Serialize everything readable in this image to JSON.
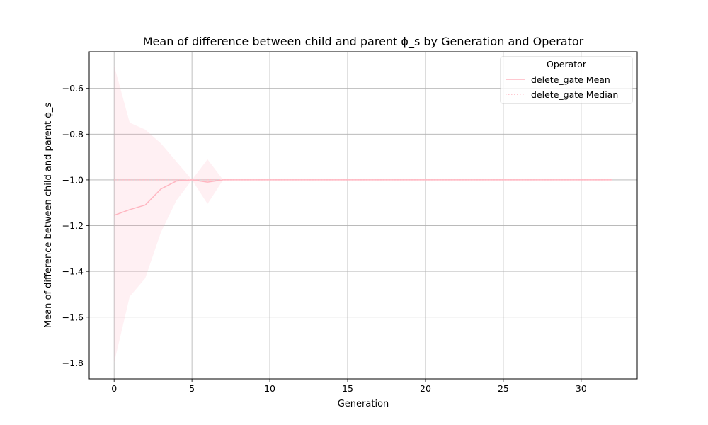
{
  "chart_data": {
    "type": "line",
    "title": "Mean of difference between child and parent ϕ_s by Generation and Operator",
    "xlabel": "Generation",
    "ylabel": "Mean of difference between child and parent ϕ_s",
    "xlim": [
      -1.6,
      33.6
    ],
    "ylim": [
      -1.87,
      -0.44
    ],
    "xticks": [
      0,
      5,
      10,
      15,
      20,
      25,
      30
    ],
    "yticks": [
      -1.8,
      -1.6,
      -1.4,
      -1.2,
      -1.0,
      -0.8,
      -0.6
    ],
    "ytick_labels": [
      "−1.8",
      "−1.6",
      "−1.4",
      "−1.2",
      "−1.0",
      "−0.8",
      "−0.6"
    ],
    "grid": true,
    "legend": {
      "title": "Operator",
      "placement": "top-right",
      "entries": [
        "delete_gate Mean",
        "delete_gate Median"
      ]
    },
    "x": [
      0,
      1,
      2,
      3,
      4,
      5,
      6,
      7,
      8,
      9,
      10,
      11,
      12,
      13,
      14,
      15,
      16,
      17,
      18,
      19,
      20,
      21,
      22,
      23,
      24,
      25,
      26,
      27,
      28,
      29,
      30,
      31,
      32
    ],
    "series": [
      {
        "name": "delete_gate Mean",
        "style": "solid",
        "color": "#ffb6c1",
        "values": [
          -1.155,
          -1.13,
          -1.11,
          -1.04,
          -1.005,
          -1.0,
          -1.01,
          -1.0,
          -1.0,
          -1.0,
          -1.0,
          -1.0,
          -1.0,
          -1.0,
          -1.0,
          -1.0,
          -1.0,
          -1.0,
          -1.0,
          -1.0,
          -1.0,
          -1.0,
          -1.0,
          -1.0,
          -1.0,
          -1.0,
          -1.0,
          -1.0,
          -1.0,
          -1.0,
          -1.0,
          -1.0,
          -1.0
        ]
      },
      {
        "name": "delete_gate Median",
        "style": "dotted",
        "color": "#ffb6c1",
        "values": [
          -1.0,
          -1.0,
          -1.0,
          -1.0,
          -1.0,
          -1.0,
          -1.0,
          -1.0,
          -1.0,
          -1.0,
          -1.0,
          -1.0,
          -1.0,
          -1.0,
          -1.0,
          -1.0,
          -1.0,
          -1.0,
          -1.0,
          -1.0,
          -1.0,
          -1.0,
          -1.0,
          -1.0,
          -1.0,
          -1.0,
          -1.0,
          -1.0,
          -1.0,
          -1.0,
          -1.0,
          -1.0,
          -1.0
        ]
      }
    ],
    "band": {
      "color": "#ffb6c1",
      "upper": [
        -0.5,
        -0.75,
        -0.78,
        -0.84,
        -0.92,
        -1.0,
        -0.91,
        -1.0,
        -1.0,
        -1.0,
        -1.0,
        -1.0,
        -1.0,
        -1.0,
        -1.0,
        -1.0,
        -1.0,
        -1.0,
        -1.0,
        -1.0,
        -1.0,
        -1.0,
        -1.0,
        -1.0,
        -1.0,
        -1.0,
        -1.0,
        -1.0,
        -1.0,
        -1.0,
        -1.0,
        -1.0,
        -1.0
      ],
      "lower": [
        -1.8,
        -1.51,
        -1.43,
        -1.23,
        -1.09,
        -1.0,
        -1.105,
        -1.0,
        -1.0,
        -1.0,
        -1.0,
        -1.0,
        -1.0,
        -1.0,
        -1.0,
        -1.0,
        -1.0,
        -1.0,
        -1.0,
        -1.0,
        -1.0,
        -1.0,
        -1.0,
        -1.0,
        -1.0,
        -1.0,
        -1.0,
        -1.0,
        -1.0,
        -1.0,
        -1.0,
        -1.0,
        -1.0
      ]
    }
  }
}
